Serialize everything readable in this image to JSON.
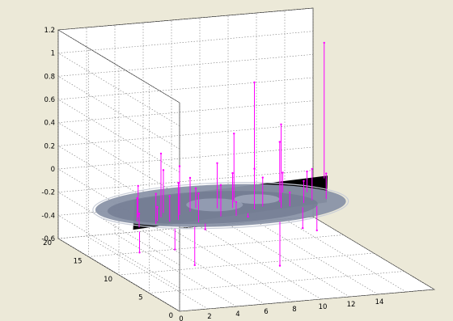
{
  "chart_data": {
    "type": "3d-stem",
    "title": "",
    "xlabel": "",
    "ylabel": "",
    "zlabel": "",
    "xlim": [
      0,
      15
    ],
    "ylim": [
      0,
      20
    ],
    "zlim": [
      -0.6,
      1.2
    ],
    "x_ticks": [
      "0",
      "2",
      "4",
      "6",
      "8",
      "10",
      "12",
      "14"
    ],
    "y_ticks": [
      "0",
      "5",
      "10",
      "15",
      "20"
    ],
    "z_ticks": [
      "-0.6",
      "-0.4",
      "-0.2",
      "0",
      "0.2",
      "0.4",
      "0.6",
      "0.8",
      "1",
      "1.2"
    ],
    "grid": true,
    "surface": {
      "description": "grayscale CT slice texture mapped on plane",
      "z": -0.17
    },
    "colors": {
      "background": "#ece9d8",
      "axes": "#ffffff",
      "stems": "#ff00ff",
      "grid": "#7a7a7a",
      "image_bg": "#000000",
      "scan": "#8a93a8"
    },
    "series": [
      {
        "stems": [
          {
            "x": 0.6,
            "y": 8.0,
            "z": -0.35
          },
          {
            "x": 1.0,
            "y": 9.0,
            "z": -0.05
          },
          {
            "x": 1.5,
            "y": 10.5,
            "z": 0.03
          },
          {
            "x": 2.0,
            "y": 11.5,
            "z": 0.1
          },
          {
            "x": 2.4,
            "y": 9.5,
            "z": 0.09
          },
          {
            "x": 2.8,
            "y": 10.2,
            "z": -0.05
          },
          {
            "x": 3.1,
            "y": 8.0,
            "z": -0.35
          },
          {
            "x": 3.5,
            "y": 9.8,
            "z": 0.05
          },
          {
            "x": 3.4,
            "y": 11.0,
            "z": 0.38
          },
          {
            "x": 4.0,
            "y": 12.0,
            "z": 0.2
          },
          {
            "x": 4.2,
            "y": 10.0,
            "z": 0.15
          },
          {
            "x": 4.5,
            "y": 8.0,
            "z": -0.5
          },
          {
            "x": 4.8,
            "y": 11.2,
            "z": 0.25
          },
          {
            "x": 5.2,
            "y": 9.0,
            "z": 0.08
          },
          {
            "x": 5.5,
            "y": 8.6,
            "z": -0.22
          },
          {
            "x": 5.8,
            "y": 11.8,
            "z": 0.12
          },
          {
            "x": 6.5,
            "y": 12.5,
            "z": 0.0
          },
          {
            "x": 7.2,
            "y": 10.0,
            "z": 0.1
          },
          {
            "x": 7.8,
            "y": 12.0,
            "z": 0.22
          },
          {
            "x": 8.2,
            "y": 9.8,
            "z": -0.05
          },
          {
            "x": 8.8,
            "y": 11.8,
            "z": 0.13
          },
          {
            "x": 9.2,
            "y": 10.2,
            "z": -0.2
          },
          {
            "x": 9.5,
            "y": 13.2,
            "z": 0.42
          },
          {
            "x": 10.0,
            "y": 11.0,
            "z": 0.18
          },
          {
            "x": 10.3,
            "y": 7.5,
            "z": -0.55
          },
          {
            "x": 10.8,
            "y": 11.5,
            "z": 0.08
          },
          {
            "x": 11.5,
            "y": 14.5,
            "z": 0.8
          },
          {
            "x": 11.8,
            "y": 10.8,
            "z": 0.55
          },
          {
            "x": 12.3,
            "y": 12.2,
            "z": 0.35
          },
          {
            "x": 12.5,
            "y": 11.0,
            "z": -0.05
          },
          {
            "x": 13.5,
            "y": 14.5,
            "z": 0.0
          },
          {
            "x": 13.2,
            "y": 10.5,
            "z": -0.35
          },
          {
            "x": 13.7,
            "y": 11.5,
            "z": 0.02
          },
          {
            "x": 14.2,
            "y": 10.5,
            "z": -0.38
          },
          {
            "x": 14.5,
            "y": 12.0,
            "z": 0.1
          },
          {
            "x": 15.0,
            "y": 14.0,
            "z": 0.01
          },
          {
            "x": 15.5,
            "y": 12.0,
            "z": 0.05
          },
          {
            "x": 17.5,
            "y": 17.0,
            "z": 1.0
          }
        ]
      }
    ]
  }
}
